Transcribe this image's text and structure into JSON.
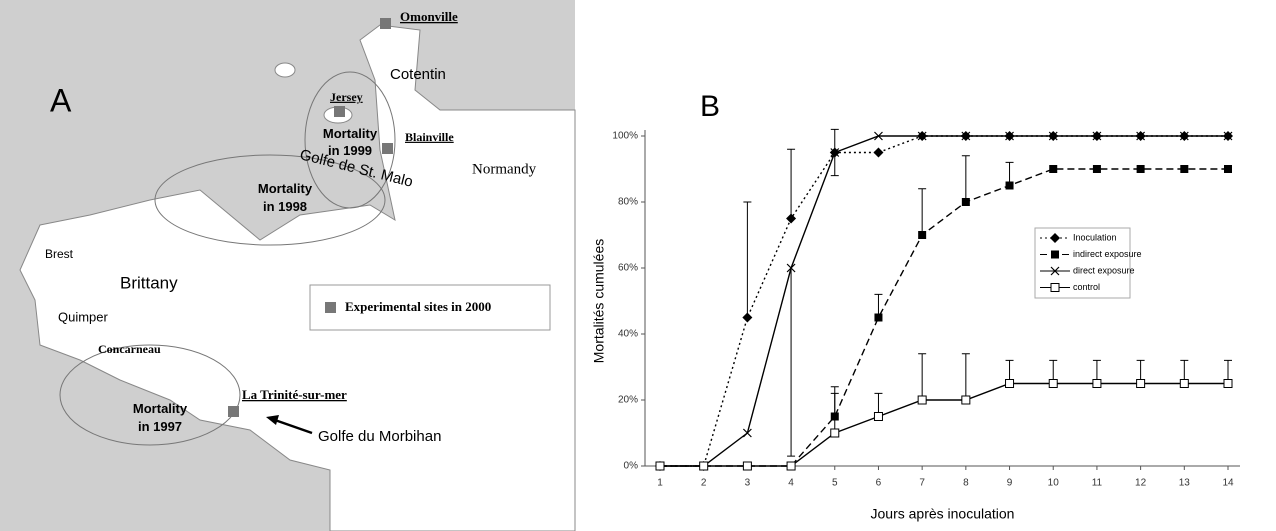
{
  "map": {
    "label": "A",
    "sites": [
      "Omonville",
      "Jersey",
      "Blainville",
      "La Trinité-sur-mer"
    ],
    "places": [
      "Cotentin",
      "Normandy",
      "Brest",
      "Brittany",
      "Quimper",
      "Concarneau",
      "Golfe de St. Malo",
      "Golfe du Morbihan"
    ],
    "zones": [
      [
        "Mortality",
        "in 1999"
      ],
      [
        "Mortality",
        "in 1998"
      ],
      [
        "Mortality",
        "in 1997"
      ]
    ],
    "legend": "Experimental sites in 2000"
  },
  "chart_data": {
    "type": "line",
    "panel_label": "B",
    "x_label": "Jours après inoculation",
    "y_label": "Mortalités cumulées",
    "x": [
      1,
      2,
      3,
      4,
      5,
      6,
      7,
      8,
      9,
      10,
      11,
      12,
      13,
      14
    ],
    "xlim": [
      1,
      14
    ],
    "xticks": [
      1,
      2,
      3,
      4,
      5,
      6,
      7,
      8,
      9,
      10,
      11,
      12,
      13,
      14
    ],
    "ylim": [
      0,
      100
    ],
    "yticks": [
      {
        "value": 0,
        "label": "0%"
      },
      {
        "value": 20,
        "label": "20%"
      },
      {
        "value": 40,
        "label": "40%"
      },
      {
        "value": 60,
        "label": "60%"
      },
      {
        "value": 80,
        "label": "80%"
      },
      {
        "value": 100,
        "label": "100%"
      }
    ],
    "legend": "right",
    "series": [
      {
        "name": "Inoculation",
        "color": "#000000",
        "dash": "dotted",
        "marker": "diamond",
        "error_side": "up",
        "values": [
          0,
          0,
          45,
          75,
          95,
          95,
          100,
          100,
          100,
          100,
          100,
          100,
          100,
          100
        ],
        "errors": [
          null,
          null,
          35,
          21,
          7,
          null,
          null,
          null,
          null,
          null,
          null,
          null,
          null,
          null
        ]
      },
      {
        "name": "indirect exposure",
        "color": "#000000",
        "dash": "dashed",
        "marker": "square",
        "error_side": "up",
        "values": [
          0,
          0,
          0,
          0,
          15,
          45,
          70,
          80,
          85,
          90,
          90,
          90,
          90,
          90
        ],
        "errors": [
          null,
          null,
          null,
          null,
          9,
          7,
          14,
          14,
          7,
          null,
          null,
          null,
          null,
          null
        ]
      },
      {
        "name": "direct exposure",
        "color": "#000000",
        "dash": "solid",
        "marker": "x",
        "error_side": "down",
        "values": [
          0,
          0,
          10,
          60,
          95,
          100,
          100,
          100,
          100,
          100,
          100,
          100,
          100,
          100
        ],
        "errors": [
          null,
          null,
          null,
          57,
          7,
          null,
          null,
          null,
          null,
          null,
          null,
          null,
          null,
          null
        ]
      },
      {
        "name": "control",
        "color": "#000000",
        "dash": "solid",
        "marker": "open-square",
        "error_side": "up",
        "values": [
          0,
          0,
          0,
          0,
          10,
          15,
          20,
          20,
          25,
          25,
          25,
          25,
          25,
          25
        ],
        "errors": [
          null,
          null,
          null,
          null,
          12,
          7,
          14,
          14,
          7,
          7,
          7,
          7,
          7,
          7
        ]
      }
    ]
  }
}
